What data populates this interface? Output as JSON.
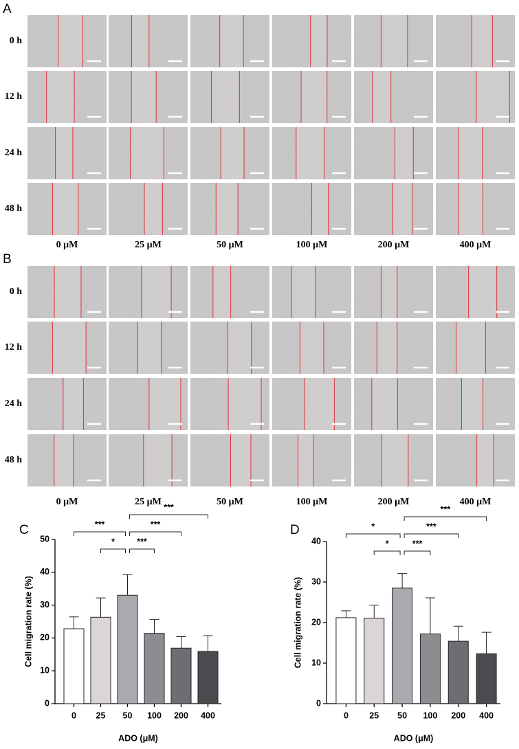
{
  "panels": [
    {
      "label": "A",
      "rows": [
        "0 h",
        "12 h",
        "24 h",
        "48 h"
      ],
      "columns": [
        "0 μM",
        "25 μM",
        "50 μM",
        "100 μM",
        "200 μM",
        "400 μM"
      ]
    },
    {
      "label": "B",
      "rows": [
        "0 h",
        "12 h",
        "24 h",
        "48 h"
      ],
      "columns": [
        "0 μM",
        "25 μM",
        "50 μM",
        "100 μM",
        "200 μM",
        "400 μM"
      ]
    }
  ],
  "chart_data": [
    {
      "type": "bar",
      "label": "C",
      "xlabel": "ADO (μM)",
      "ylabel": "Cell migration rate (%)",
      "categories": [
        "0",
        "25",
        "50",
        "100",
        "200",
        "400"
      ],
      "values": [
        22.8,
        26.3,
        33.0,
        21.4,
        16.9,
        15.9
      ],
      "errors": [
        3.6,
        5.9,
        6.3,
        4.2,
        3.5,
        4.8
      ],
      "colors": [
        "#ffffff",
        "#d9d5d9",
        "#aba9b0",
        "#8e8c91",
        "#6f6d72",
        "#4e4b50"
      ],
      "ylim": [
        0,
        50
      ],
      "yticks": [
        0,
        10,
        20,
        30,
        40,
        50
      ],
      "significance": [
        {
          "pair": [
            "50",
            "400"
          ],
          "label": "***"
        },
        {
          "pair": [
            "0",
            "50"
          ],
          "label": "***"
        },
        {
          "pair": [
            "50",
            "200"
          ],
          "label": "***"
        },
        {
          "pair": [
            "25",
            "50"
          ],
          "label": "*"
        },
        {
          "pair": [
            "50",
            "100"
          ],
          "label": "***"
        }
      ]
    },
    {
      "type": "bar",
      "label": "D",
      "xlabel": "ADO (μM)",
      "ylabel": "Cell migration rate (%)",
      "categories": [
        "0",
        "25",
        "50",
        "100",
        "200",
        "400"
      ],
      "values": [
        21.2,
        21.1,
        28.5,
        17.2,
        15.4,
        12.3
      ],
      "errors": [
        1.7,
        3.2,
        3.6,
        8.9,
        3.7,
        5.3
      ],
      "colors": [
        "#ffffff",
        "#d9d5d9",
        "#aba9b0",
        "#8e8c91",
        "#6f6d72",
        "#4e4b50"
      ],
      "ylim": [
        0,
        40
      ],
      "yticks": [
        0,
        10,
        20,
        30,
        40
      ],
      "significance": [
        {
          "pair": [
            "50",
            "400"
          ],
          "label": "***"
        },
        {
          "pair": [
            "0",
            "50"
          ],
          "label": "*"
        },
        {
          "pair": [
            "50",
            "200"
          ],
          "label": "***"
        },
        {
          "pair": [
            "25",
            "50"
          ],
          "label": "*"
        },
        {
          "pair": [
            "50",
            "100"
          ],
          "label": "***"
        }
      ]
    }
  ]
}
